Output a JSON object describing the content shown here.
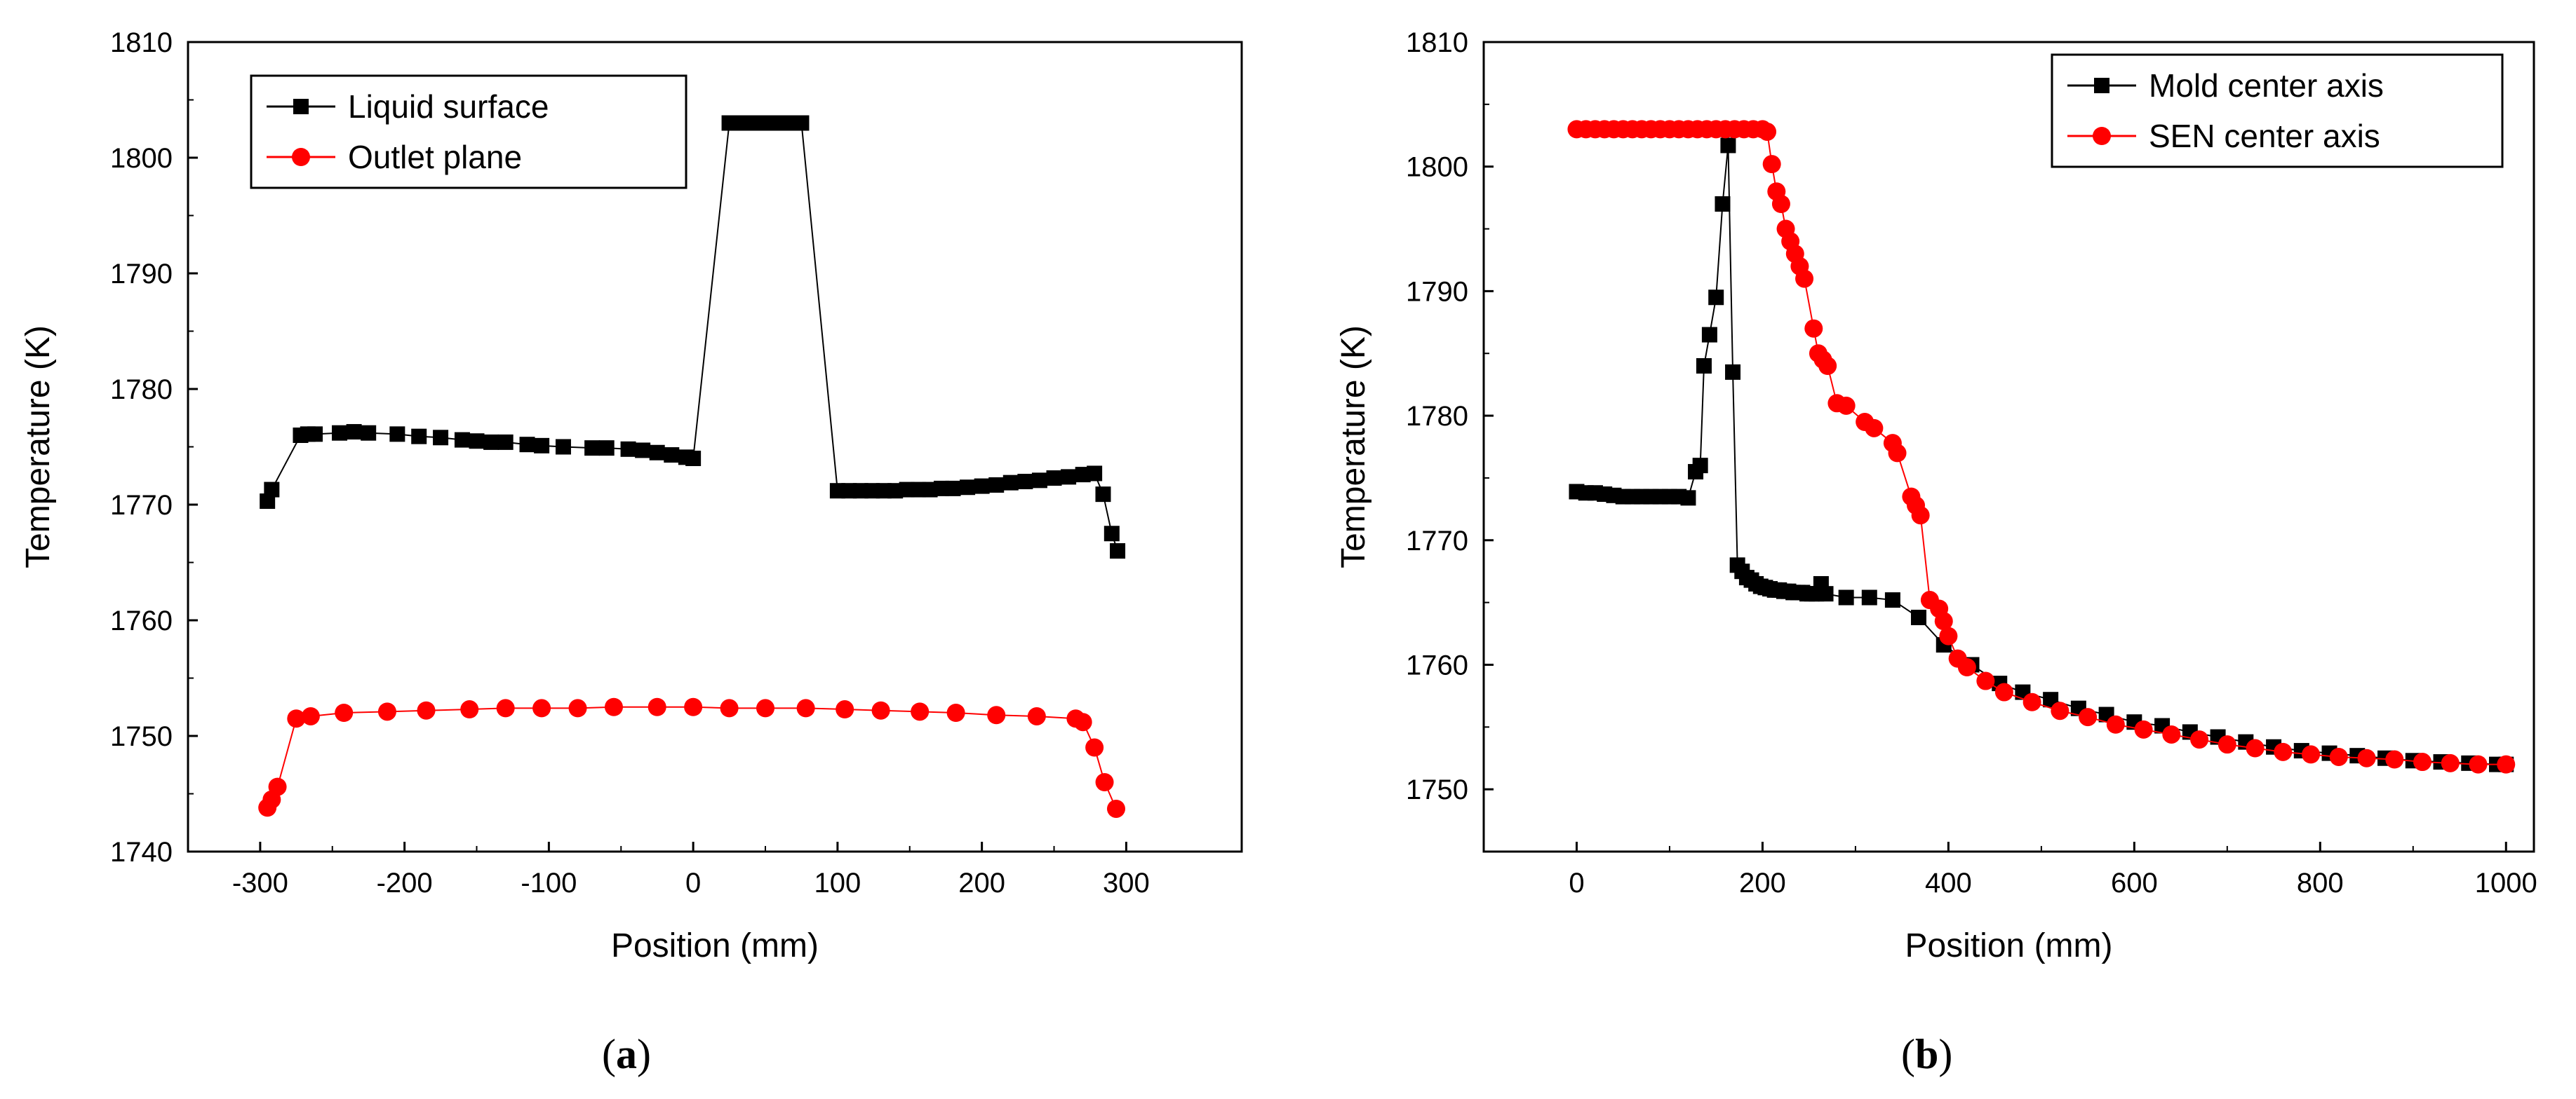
{
  "chart_data": [
    {
      "type": "line",
      "panel": "a",
      "caption_open": "(",
      "caption_letter": "a",
      "caption_close": ")",
      "xlabel": "Position (mm)",
      "ylabel": "Temperature (K)",
      "xlim": [
        -350,
        380
      ],
      "ylim": [
        1740,
        1810
      ],
      "xticks": [
        -300,
        -200,
        -100,
        0,
        100,
        200,
        300
      ],
      "yticks": [
        1740,
        1750,
        1760,
        1770,
        1780,
        1790,
        1800,
        1810
      ],
      "legend_position": "top-left",
      "series": [
        {
          "name": "Liquid surface",
          "color": "#000000",
          "marker": "square",
          "x": [
            -295,
            -292,
            -272,
            -267,
            -262,
            -245,
            -235,
            -225,
            -205,
            -190,
            -175,
            -160,
            -150,
            -140,
            -130,
            -115,
            -105,
            -90,
            -70,
            -60,
            -45,
            -35,
            -25,
            -15,
            -5,
            0,
            25,
            35,
            45,
            55,
            65,
            75,
            100,
            108,
            116,
            124,
            132,
            140,
            148,
            156,
            164,
            172,
            180,
            190,
            200,
            210,
            220,
            230,
            240,
            250,
            260,
            270,
            278,
            284,
            290,
            294
          ],
          "y": [
            1770.3,
            1771.3,
            1776.0,
            1776.1,
            1776.1,
            1776.2,
            1776.3,
            1776.2,
            1776.1,
            1775.9,
            1775.8,
            1775.6,
            1775.5,
            1775.4,
            1775.4,
            1775.2,
            1775.1,
            1775.0,
            1774.9,
            1774.9,
            1774.8,
            1774.7,
            1774.5,
            1774.3,
            1774.1,
            1774.0,
            1803.0,
            1803.0,
            1803.0,
            1803.0,
            1803.0,
            1803.0,
            1771.2,
            1771.2,
            1771.2,
            1771.2,
            1771.2,
            1771.2,
            1771.3,
            1771.3,
            1771.3,
            1771.4,
            1771.4,
            1771.5,
            1771.6,
            1771.7,
            1771.9,
            1772.0,
            1772.1,
            1772.3,
            1772.4,
            1772.6,
            1772.7,
            1770.9,
            1767.5,
            1766.0
          ]
        },
        {
          "name": "Outlet plane",
          "color": "#ff0000",
          "marker": "circle",
          "x": [
            -295,
            -292,
            -288,
            -275,
            -265,
            -242,
            -212,
            -185,
            -155,
            -130,
            -105,
            -80,
            -55,
            -25,
            0,
            25,
            50,
            78,
            105,
            130,
            157,
            182,
            210,
            238,
            265,
            270,
            278,
            285,
            293
          ],
          "y": [
            1743.8,
            1744.5,
            1745.6,
            1751.5,
            1751.7,
            1752.0,
            1752.1,
            1752.2,
            1752.3,
            1752.4,
            1752.4,
            1752.4,
            1752.5,
            1752.5,
            1752.5,
            1752.4,
            1752.4,
            1752.4,
            1752.3,
            1752.2,
            1752.1,
            1752.0,
            1751.8,
            1751.7,
            1751.5,
            1751.2,
            1749.0,
            1746.0,
            1743.7
          ]
        }
      ]
    },
    {
      "type": "line",
      "panel": "b",
      "caption_open": "(",
      "caption_letter": "b",
      "caption_close": ")",
      "xlabel": "Position (mm)",
      "ylabel": "Temperature (K)",
      "xlim": [
        -100,
        1030
      ],
      "ylim": [
        1745,
        1810
      ],
      "xticks": [
        0,
        200,
        400,
        600,
        800,
        1000
      ],
      "yticks": [
        1750,
        1760,
        1770,
        1780,
        1790,
        1800,
        1810
      ],
      "legend_position": "top-right",
      "series": [
        {
          "name": "Mold center axis",
          "color": "#000000",
          "marker": "square",
          "x": [
            0,
            10,
            20,
            30,
            40,
            50,
            60,
            70,
            80,
            90,
            100,
            110,
            120,
            128,
            133,
            137,
            143,
            150,
            157,
            163,
            168,
            173,
            178,
            183,
            188,
            193,
            198,
            203,
            208,
            213,
            218,
            223,
            228,
            233,
            238,
            243,
            248,
            253,
            258,
            263,
            268,
            290,
            315,
            340,
            368,
            395,
            425,
            455,
            480,
            510,
            540,
            570,
            600,
            630,
            660,
            690,
            720,
            750,
            780,
            810,
            840,
            870,
            900,
            930,
            960,
            990,
            1000
          ],
          "y": [
            1773.9,
            1773.8,
            1773.8,
            1773.7,
            1773.6,
            1773.5,
            1773.5,
            1773.5,
            1773.5,
            1773.5,
            1773.5,
            1773.5,
            1773.4,
            1775.5,
            1776.0,
            1784.0,
            1786.5,
            1789.5,
            1797.0,
            1801.7,
            1783.5,
            1768.0,
            1767.5,
            1767.0,
            1766.8,
            1766.5,
            1766.3,
            1766.2,
            1766.1,
            1766.0,
            1766.0,
            1765.9,
            1765.9,
            1765.8,
            1765.8,
            1765.8,
            1765.7,
            1765.7,
            1765.7,
            1766.5,
            1765.7,
            1765.4,
            1765.4,
            1765.2,
            1763.8,
            1761.6,
            1760.0,
            1758.5,
            1757.8,
            1757.2,
            1756.5,
            1756.0,
            1755.4,
            1755.1,
            1754.6,
            1754.2,
            1753.8,
            1753.4,
            1753.1,
            1752.9,
            1752.7,
            1752.5,
            1752.3,
            1752.2,
            1752.1,
            1752.0,
            1752.0
          ]
        },
        {
          "name": "SEN center axis",
          "color": "#ff0000",
          "marker": "circle",
          "x": [
            0,
            10,
            20,
            30,
            40,
            50,
            60,
            70,
            80,
            90,
            100,
            110,
            120,
            130,
            140,
            150,
            160,
            170,
            180,
            190,
            200,
            205,
            210,
            215,
            220,
            225,
            230,
            235,
            240,
            245,
            255,
            260,
            265,
            270,
            280,
            290,
            310,
            320,
            340,
            345,
            360,
            365,
            370,
            380,
            390,
            395,
            400,
            410,
            420,
            440,
            460,
            490,
            520,
            550,
            580,
            610,
            640,
            670,
            700,
            730,
            760,
            790,
            820,
            850,
            880,
            910,
            940,
            970,
            1000
          ],
          "y": [
            1803.0,
            1803.0,
            1803.0,
            1803.0,
            1803.0,
            1803.0,
            1803.0,
            1803.0,
            1803.0,
            1803.0,
            1803.0,
            1803.0,
            1803.0,
            1803.0,
            1803.0,
            1803.0,
            1803.0,
            1803.0,
            1803.0,
            1803.0,
            1803.0,
            1802.8,
            1800.2,
            1798.0,
            1797.0,
            1795.0,
            1794.0,
            1793.0,
            1792.0,
            1791.0,
            1787.0,
            1785.0,
            1784.5,
            1784.0,
            1781.0,
            1780.8,
            1779.5,
            1779.0,
            1777.8,
            1777.0,
            1773.5,
            1772.8,
            1772.0,
            1765.2,
            1764.5,
            1763.5,
            1762.3,
            1760.5,
            1759.8,
            1758.7,
            1757.8,
            1757.0,
            1756.3,
            1755.8,
            1755.2,
            1754.8,
            1754.4,
            1754.0,
            1753.6,
            1753.3,
            1753.0,
            1752.8,
            1752.6,
            1752.5,
            1752.4,
            1752.2,
            1752.1,
            1752.0,
            1752.0
          ]
        }
      ]
    }
  ]
}
